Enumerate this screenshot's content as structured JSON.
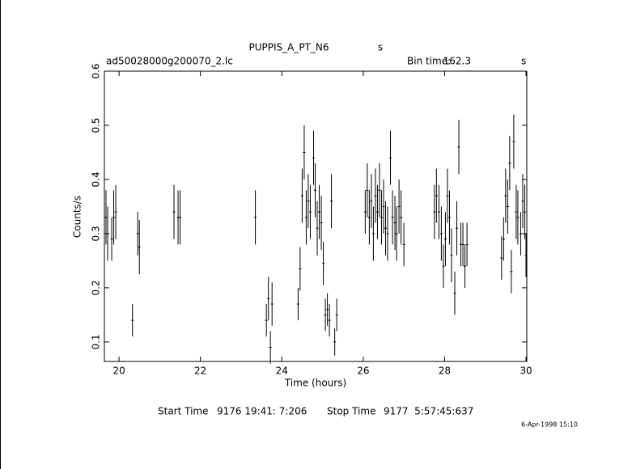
{
  "chart_data": {
    "type": "errorbar",
    "title": "PUPPIS_A_PT_N6",
    "title_unit": "s",
    "file_name": "ad50028000g200070_2.lc",
    "bin_time_label": "Bin time:",
    "bin_time": "162.3",
    "bin_time_unit": "s",
    "x_label": "Time (hours)",
    "y_label": "Counts/s",
    "start_label": "Start Time",
    "start_time": "9176 19:41: 7:206",
    "stop_label": "Stop Time",
    "stop_time": "9177  5:57:45:637",
    "timestamp": "6-Apr-1998 15:10",
    "xlim": [
      19.64,
      30.02
    ],
    "xticks": [
      20,
      22,
      24,
      26,
      28,
      30
    ],
    "ylim": [
      0.064,
      0.6
    ],
    "yticks": [
      0.1,
      0.2,
      0.3,
      0.4,
      0.5,
      0.6
    ],
    "color": "#000000",
    "series": [
      {
        "name": "Counts/s",
        "x": [
          19.68,
          19.72,
          19.82,
          19.87,
          19.92,
          20.33,
          20.46,
          20.5,
          21.35,
          21.45,
          21.5,
          23.35,
          23.62,
          23.67,
          23.72,
          23.76,
          24.4,
          24.45,
          24.5,
          24.55,
          24.6,
          24.65,
          24.7,
          24.78,
          24.82,
          24.87,
          24.92,
          24.97,
          25.02,
          25.07,
          25.12,
          25.17,
          25.22,
          25.3,
          25.35,
          26.05,
          26.1,
          26.15,
          26.2,
          26.25,
          26.3,
          26.35,
          26.4,
          26.45,
          26.5,
          26.55,
          26.6,
          26.67,
          26.72,
          26.78,
          26.82,
          26.88,
          26.93,
          27.0,
          27.75,
          27.8,
          27.86,
          27.92,
          27.97,
          28.02,
          28.07,
          28.12,
          28.17,
          28.25,
          28.3,
          28.35,
          28.4,
          28.45,
          28.5,
          28.55,
          29.4,
          29.45,
          29.5,
          29.55,
          29.6,
          29.64,
          29.7,
          29.76,
          29.8,
          29.87,
          29.92,
          29.97,
          30.0
        ],
        "values": [
          0.33,
          0.3,
          0.29,
          0.33,
          0.34,
          0.14,
          0.3,
          0.275,
          0.34,
          0.33,
          0.33,
          0.33,
          0.14,
          0.18,
          0.09,
          0.17,
          0.17,
          0.235,
          0.37,
          0.45,
          0.33,
          0.36,
          0.34,
          0.44,
          0.38,
          0.31,
          0.34,
          0.32,
          0.245,
          0.15,
          0.16,
          0.14,
          0.36,
          0.1,
          0.15,
          0.34,
          0.38,
          0.33,
          0.36,
          0.3,
          0.37,
          0.34,
          0.38,
          0.33,
          0.35,
          0.31,
          0.3,
          0.44,
          0.33,
          0.32,
          0.3,
          0.35,
          0.33,
          0.28,
          0.34,
          0.37,
          0.34,
          0.3,
          0.24,
          0.29,
          0.37,
          0.33,
          0.26,
          0.19,
          0.31,
          0.46,
          0.28,
          0.28,
          0.24,
          0.28,
          0.255,
          0.29,
          0.37,
          0.35,
          0.43,
          0.23,
          0.47,
          0.34,
          0.33,
          0.3,
          0.36,
          0.34,
          0.26
        ],
        "errors": [
          0.05,
          0.05,
          0.04,
          0.05,
          0.05,
          0.03,
          0.04,
          0.05,
          0.05,
          0.05,
          0.05,
          0.05,
          0.03,
          0.04,
          0.03,
          0.04,
          0.03,
          0.04,
          0.05,
          0.05,
          0.05,
          0.05,
          0.05,
          0.05,
          0.05,
          0.05,
          0.05,
          0.05,
          0.04,
          0.03,
          0.03,
          0.03,
          0.05,
          0.025,
          0.03,
          0.04,
          0.05,
          0.05,
          0.05,
          0.05,
          0.05,
          0.05,
          0.05,
          0.05,
          0.05,
          0.05,
          0.05,
          0.05,
          0.05,
          0.05,
          0.05,
          0.05,
          0.05,
          0.04,
          0.05,
          0.05,
          0.05,
          0.05,
          0.04,
          0.05,
          0.05,
          0.05,
          0.05,
          0.04,
          0.05,
          0.05,
          0.04,
          0.04,
          0.04,
          0.04,
          0.04,
          0.04,
          0.05,
          0.05,
          0.05,
          0.04,
          0.05,
          0.05,
          0.05,
          0.04,
          0.05,
          0.05,
          0.04
        ]
      }
    ]
  }
}
